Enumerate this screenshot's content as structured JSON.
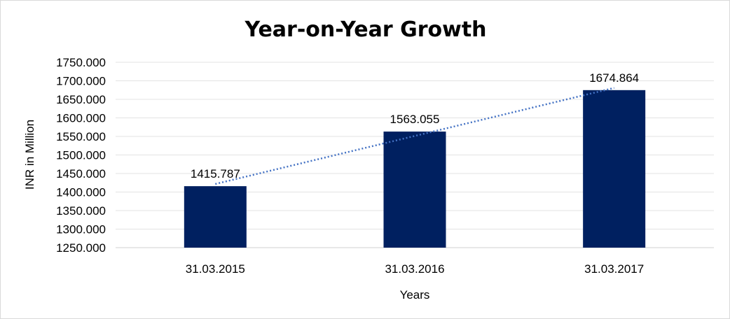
{
  "chart_data": {
    "type": "bar",
    "title": "Year-on-Year Growth",
    "xlabel": "Years",
    "ylabel": "INR in Million",
    "categories": [
      "31.03.2015",
      "31.03.2016",
      "31.03.2017"
    ],
    "values": [
      1415.787,
      1563.055,
      1674.864
    ],
    "data_labels": [
      "1415.787",
      "1563.055",
      "1674.864"
    ],
    "ylim": [
      1250,
      1750
    ],
    "ytick_step": 50,
    "ytick_labels": [
      "1250.000",
      "1300.000",
      "1350.000",
      "1400.000",
      "1450.000",
      "1500.000",
      "1550.000",
      "1600.000",
      "1650.000",
      "1700.000",
      "1750.000"
    ],
    "bar_color": "#002060",
    "trendline": {
      "type": "linear",
      "style": "dotted",
      "color": "#4472c4"
    },
    "grid": true,
    "legend": "none"
  }
}
